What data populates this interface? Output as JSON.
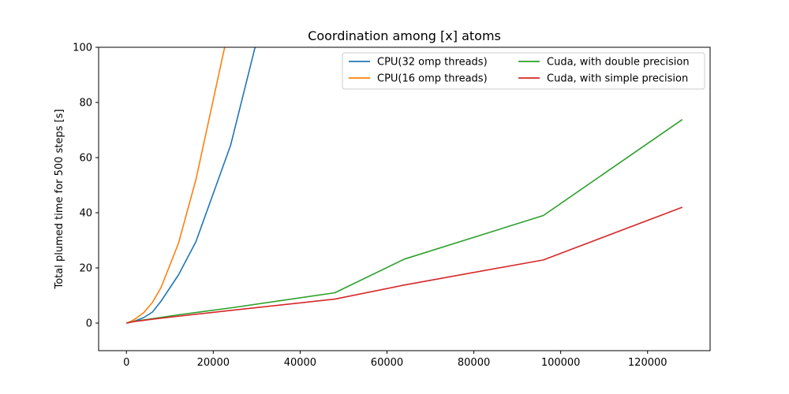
{
  "chart_data": {
    "type": "line",
    "title": "Coordination among [x] atoms",
    "xlabel": "",
    "ylabel": "Total plumed time for 500 steps [s]",
    "xlim": [
      -6400,
      134400
    ],
    "ylim": [
      -10,
      100
    ],
    "xticks": [
      0,
      20000,
      40000,
      60000,
      80000,
      100000,
      120000
    ],
    "yticks": [
      0,
      20,
      40,
      60,
      80,
      100
    ],
    "grid": false,
    "legend_position": "top-right",
    "legend_columns": 2,
    "series": [
      {
        "name": "CPU(32 omp threads)",
        "color": "#1f77b4",
        "x": [
          0,
          1000,
          2000,
          4000,
          6000,
          8000,
          12000,
          16000,
          24000,
          32000
        ],
        "y": [
          0,
          0.3,
          0.8,
          2.0,
          4.0,
          8.0,
          17.5,
          29.5,
          64.5,
          115
        ]
      },
      {
        "name": "CPU(16 omp threads)",
        "color": "#ff7f0e",
        "x": [
          0,
          1000,
          2000,
          4000,
          6000,
          8000,
          12000,
          16000,
          24000
        ],
        "y": [
          0,
          0.6,
          1.5,
          3.8,
          7.5,
          13.0,
          29.0,
          52.0,
          110
        ]
      },
      {
        "name": "Cuda, with double precision",
        "color": "#2ca02c",
        "x": [
          0,
          2000,
          6000,
          12000,
          24000,
          48000,
          64000,
          96000,
          128000
        ],
        "y": [
          0,
          0.7,
          1.6,
          3.0,
          5.5,
          11.0,
          23.2,
          39.0,
          73.8
        ]
      },
      {
        "name": "Cuda, with simple precision",
        "color": "#d62728",
        "x": [
          0,
          2000,
          6000,
          12000,
          24000,
          48000,
          64000,
          96000,
          128000
        ],
        "y": [
          0,
          0.6,
          1.4,
          2.5,
          4.6,
          8.7,
          13.8,
          22.9,
          42.0
        ]
      }
    ]
  }
}
